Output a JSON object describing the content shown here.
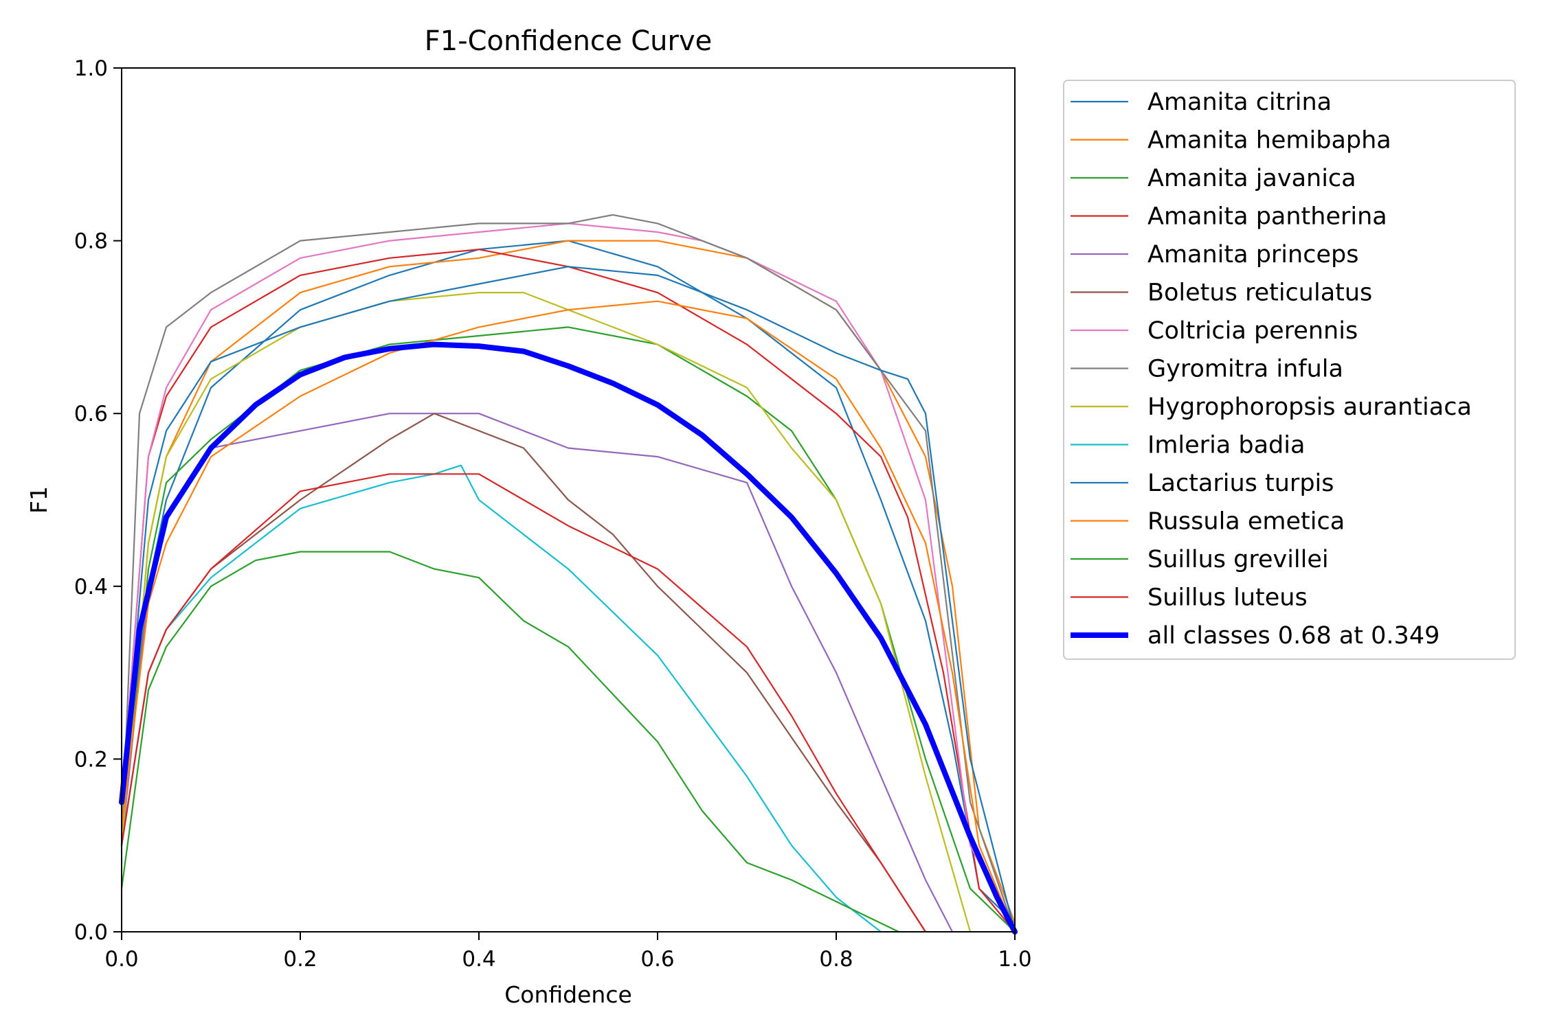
{
  "chart_data": {
    "type": "line",
    "title": "F1-Confidence Curve",
    "xlabel": "Confidence",
    "ylabel": "F1",
    "xlim": [
      0,
      1
    ],
    "ylim": [
      0,
      1
    ],
    "xticks": [
      "0.0",
      "0.2",
      "0.4",
      "0.6",
      "0.8",
      "1.0"
    ],
    "yticks": [
      "0.0",
      "0.2",
      "0.4",
      "0.6",
      "0.8",
      "1.0"
    ],
    "grid": false,
    "legend_position": "outside-right",
    "series": [
      {
        "name": "Amanita citrina",
        "color": "#1f77b4",
        "x": [
          0.0,
          0.03,
          0.05,
          0.1,
          0.2,
          0.3,
          0.4,
          0.5,
          0.6,
          0.7,
          0.8,
          0.85,
          0.9,
          0.93,
          0.96,
          1.0
        ],
        "y": [
          0.1,
          0.4,
          0.5,
          0.63,
          0.72,
          0.76,
          0.79,
          0.8,
          0.77,
          0.71,
          0.63,
          0.5,
          0.36,
          0.22,
          0.05,
          0.01
        ]
      },
      {
        "name": "Amanita hemibapha",
        "color": "#ff7f0e",
        "x": [
          0.0,
          0.03,
          0.05,
          0.1,
          0.2,
          0.3,
          0.4,
          0.5,
          0.6,
          0.7,
          0.8,
          0.85,
          0.9,
          0.93,
          0.96,
          1.0
        ],
        "y": [
          0.1,
          0.45,
          0.55,
          0.66,
          0.74,
          0.77,
          0.78,
          0.8,
          0.8,
          0.78,
          0.72,
          0.65,
          0.55,
          0.4,
          0.12,
          0.01
        ]
      },
      {
        "name": "Amanita javanica",
        "color": "#2ca02c",
        "x": [
          0.0,
          0.03,
          0.05,
          0.1,
          0.2,
          0.3,
          0.4,
          0.5,
          0.6,
          0.7,
          0.75,
          0.8,
          0.85,
          0.9,
          0.95,
          1.0
        ],
        "y": [
          0.1,
          0.42,
          0.52,
          0.57,
          0.65,
          0.68,
          0.69,
          0.7,
          0.68,
          0.62,
          0.58,
          0.5,
          0.38,
          0.2,
          0.05,
          0.0
        ]
      },
      {
        "name": "Amanita pantherina",
        "color": "#d62728",
        "x": [
          0.0,
          0.03,
          0.05,
          0.1,
          0.2,
          0.3,
          0.4,
          0.5,
          0.6,
          0.7,
          0.8,
          0.85,
          0.88,
          0.92,
          0.96,
          1.0
        ],
        "y": [
          0.15,
          0.55,
          0.62,
          0.7,
          0.76,
          0.78,
          0.79,
          0.77,
          0.74,
          0.68,
          0.6,
          0.55,
          0.48,
          0.3,
          0.05,
          0.0
        ]
      },
      {
        "name": "Amanita princeps",
        "color": "#9467bd",
        "x": [
          0.0,
          0.03,
          0.05,
          0.1,
          0.2,
          0.3,
          0.4,
          0.45,
          0.5,
          0.6,
          0.7,
          0.75,
          0.8,
          0.85,
          0.9,
          0.93
        ],
        "y": [
          0.1,
          0.4,
          0.48,
          0.56,
          0.58,
          0.6,
          0.6,
          0.58,
          0.56,
          0.55,
          0.52,
          0.4,
          0.3,
          0.18,
          0.06,
          0.0
        ]
      },
      {
        "name": "Boletus reticulatus",
        "color": "#8c564b",
        "x": [
          0.0,
          0.03,
          0.05,
          0.1,
          0.2,
          0.3,
          0.35,
          0.4,
          0.45,
          0.5,
          0.55,
          0.6,
          0.7,
          0.8,
          0.85,
          0.9
        ],
        "y": [
          0.1,
          0.3,
          0.35,
          0.42,
          0.5,
          0.57,
          0.6,
          0.58,
          0.56,
          0.5,
          0.46,
          0.4,
          0.3,
          0.15,
          0.08,
          0.0
        ]
      },
      {
        "name": "Coltricia perennis",
        "color": "#e377c2",
        "x": [
          0.0,
          0.03,
          0.05,
          0.1,
          0.2,
          0.3,
          0.4,
          0.5,
          0.6,
          0.65,
          0.7,
          0.8,
          0.85,
          0.9,
          0.95,
          1.0
        ],
        "y": [
          0.15,
          0.55,
          0.63,
          0.72,
          0.78,
          0.8,
          0.81,
          0.82,
          0.81,
          0.8,
          0.78,
          0.73,
          0.65,
          0.5,
          0.1,
          0.0
        ]
      },
      {
        "name": "Gyromitra infula",
        "color": "#7f7f7f",
        "x": [
          0.0,
          0.02,
          0.05,
          0.1,
          0.2,
          0.3,
          0.4,
          0.5,
          0.55,
          0.6,
          0.7,
          0.8,
          0.85,
          0.9,
          0.95,
          1.0
        ],
        "y": [
          0.1,
          0.6,
          0.7,
          0.74,
          0.8,
          0.81,
          0.82,
          0.82,
          0.83,
          0.82,
          0.78,
          0.72,
          0.65,
          0.58,
          0.15,
          0.0
        ]
      },
      {
        "name": "Hygrophoropsis aurantiaca",
        "color": "#bcbd22",
        "x": [
          0.0,
          0.03,
          0.05,
          0.1,
          0.2,
          0.3,
          0.4,
          0.45,
          0.5,
          0.6,
          0.7,
          0.75,
          0.8,
          0.85,
          0.9,
          0.95
        ],
        "y": [
          0.1,
          0.45,
          0.55,
          0.64,
          0.7,
          0.73,
          0.74,
          0.74,
          0.72,
          0.68,
          0.63,
          0.56,
          0.5,
          0.38,
          0.18,
          0.0
        ]
      },
      {
        "name": "Imleria badia",
        "color": "#17becf",
        "x": [
          0.0,
          0.03,
          0.05,
          0.1,
          0.2,
          0.3,
          0.35,
          0.38,
          0.4,
          0.45,
          0.5,
          0.6,
          0.7,
          0.75,
          0.8,
          0.85
        ],
        "y": [
          0.1,
          0.3,
          0.35,
          0.41,
          0.49,
          0.52,
          0.53,
          0.54,
          0.5,
          0.46,
          0.42,
          0.32,
          0.18,
          0.1,
          0.04,
          0.0
        ]
      },
      {
        "name": "Lactarius turpis",
        "color": "#1f77b4",
        "x": [
          0.0,
          0.03,
          0.05,
          0.1,
          0.2,
          0.3,
          0.4,
          0.5,
          0.6,
          0.7,
          0.8,
          0.85,
          0.88,
          0.9,
          0.95,
          1.0
        ],
        "y": [
          0.15,
          0.5,
          0.58,
          0.66,
          0.7,
          0.73,
          0.75,
          0.77,
          0.76,
          0.72,
          0.67,
          0.65,
          0.64,
          0.6,
          0.2,
          0.0
        ]
      },
      {
        "name": "Russula emetica",
        "color": "#ff7f0e",
        "x": [
          0.0,
          0.03,
          0.05,
          0.1,
          0.2,
          0.3,
          0.4,
          0.5,
          0.6,
          0.7,
          0.8,
          0.85,
          0.9,
          0.93,
          0.96,
          1.0
        ],
        "y": [
          0.12,
          0.38,
          0.45,
          0.55,
          0.62,
          0.67,
          0.7,
          0.72,
          0.73,
          0.71,
          0.64,
          0.56,
          0.45,
          0.3,
          0.1,
          0.0
        ]
      },
      {
        "name": "Suillus grevillei",
        "color": "#2ca02c",
        "x": [
          0.0,
          0.03,
          0.05,
          0.1,
          0.15,
          0.2,
          0.3,
          0.35,
          0.4,
          0.45,
          0.5,
          0.6,
          0.65,
          0.7,
          0.75,
          0.87
        ],
        "y": [
          0.05,
          0.28,
          0.33,
          0.4,
          0.43,
          0.44,
          0.44,
          0.42,
          0.41,
          0.36,
          0.33,
          0.22,
          0.14,
          0.08,
          0.06,
          0.0
        ]
      },
      {
        "name": "Suillus luteus",
        "color": "#d62728",
        "x": [
          0.0,
          0.03,
          0.05,
          0.1,
          0.2,
          0.3,
          0.35,
          0.4,
          0.45,
          0.5,
          0.6,
          0.7,
          0.75,
          0.8,
          0.85,
          0.9
        ],
        "y": [
          0.1,
          0.3,
          0.35,
          0.42,
          0.51,
          0.53,
          0.53,
          0.53,
          0.5,
          0.47,
          0.42,
          0.33,
          0.25,
          0.16,
          0.08,
          0.0
        ]
      },
      {
        "name": "all classes 0.68 at 0.349",
        "color": "#0000ff",
        "bold": true,
        "x": [
          0.0,
          0.02,
          0.05,
          0.1,
          0.15,
          0.2,
          0.25,
          0.3,
          0.349,
          0.4,
          0.45,
          0.5,
          0.55,
          0.6,
          0.65,
          0.7,
          0.75,
          0.8,
          0.85,
          0.9,
          0.95,
          0.98,
          1.0
        ],
        "y": [
          0.15,
          0.35,
          0.48,
          0.56,
          0.61,
          0.645,
          0.665,
          0.675,
          0.68,
          0.678,
          0.672,
          0.655,
          0.635,
          0.61,
          0.575,
          0.53,
          0.48,
          0.415,
          0.34,
          0.24,
          0.11,
          0.04,
          0.0
        ]
      }
    ]
  }
}
